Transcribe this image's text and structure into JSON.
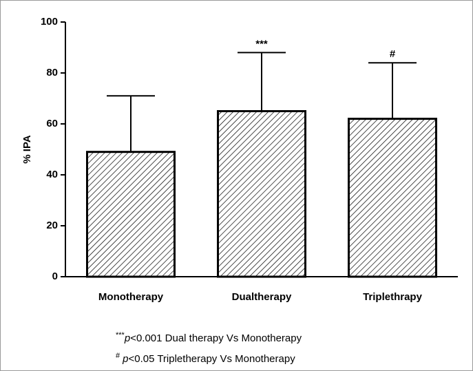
{
  "chart_data": {
    "type": "bar",
    "ylabel": "% IPA",
    "categories": [
      "Monotherapy",
      "Dualtherapy",
      "Triplethrapy"
    ],
    "values": [
      49,
      65,
      62
    ],
    "errors": [
      22,
      23,
      22
    ],
    "annotations": [
      null,
      "***",
      "#"
    ],
    "ylim": [
      0,
      100
    ],
    "yticks": [
      0,
      20,
      40,
      60,
      80,
      100
    ],
    "color": "#000000",
    "footnotes": [
      {
        "symbol": "***",
        "italic": "p",
        "text": "<0.001 Dual therapy Vs Monotherapy"
      },
      {
        "symbol": "#",
        "italic": "p",
        "text": "<0.05 Tripletherapy Vs Monotherapy"
      }
    ]
  }
}
